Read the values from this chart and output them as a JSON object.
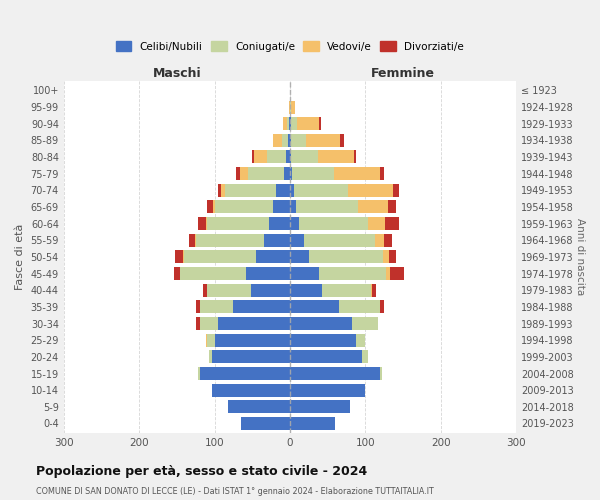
{
  "age_groups": [
    "0-4",
    "5-9",
    "10-14",
    "15-19",
    "20-24",
    "25-29",
    "30-34",
    "35-39",
    "40-44",
    "45-49",
    "50-54",
    "55-59",
    "60-64",
    "65-69",
    "70-74",
    "75-79",
    "80-84",
    "85-89",
    "90-94",
    "95-99",
    "100+"
  ],
  "birth_years": [
    "2019-2023",
    "2014-2018",
    "2009-2013",
    "2004-2008",
    "1999-2003",
    "1994-1998",
    "1989-1993",
    "1984-1988",
    "1979-1983",
    "1974-1978",
    "1969-1973",
    "1964-1968",
    "1959-1963",
    "1954-1958",
    "1949-1953",
    "1944-1948",
    "1939-1943",
    "1934-1938",
    "1929-1933",
    "1924-1928",
    "≤ 1923"
  ],
  "colors": {
    "celibi": "#4472c4",
    "coniugati": "#c5d5a0",
    "vedovi": "#f5c06a",
    "divorziati": "#c0312b"
  },
  "maschi": {
    "celibi": [
      65,
      82,
      103,
      120,
      103,
      100,
      95,
      75,
      52,
      58,
      45,
      35,
      28,
      22,
      18,
      8,
      5,
      2,
      1,
      0,
      0
    ],
    "coniugati": [
      0,
      0,
      0,
      2,
      5,
      10,
      25,
      45,
      58,
      88,
      95,
      90,
      82,
      78,
      68,
      48,
      25,
      8,
      3,
      0,
      0
    ],
    "vedovi": [
      0,
      0,
      0,
      0,
      0,
      2,
      0,
      0,
      0,
      0,
      2,
      1,
      2,
      2,
      5,
      10,
      18,
      12,
      5,
      1,
      0
    ],
    "divorziati": [
      0,
      0,
      0,
      0,
      0,
      0,
      5,
      5,
      5,
      8,
      10,
      8,
      10,
      8,
      5,
      5,
      2,
      0,
      0,
      0,
      0
    ]
  },
  "femmine": {
    "celibi": [
      60,
      80,
      100,
      120,
      95,
      88,
      82,
      65,
      42,
      38,
      25,
      18,
      12,
      8,
      5,
      3,
      2,
      1,
      1,
      0,
      0
    ],
    "coniugati": [
      0,
      0,
      0,
      2,
      8,
      12,
      35,
      55,
      65,
      90,
      98,
      95,
      92,
      82,
      72,
      55,
      35,
      20,
      8,
      2,
      0
    ],
    "vedovi": [
      0,
      0,
      0,
      0,
      0,
      0,
      0,
      0,
      2,
      5,
      8,
      12,
      22,
      40,
      60,
      62,
      48,
      45,
      30,
      5,
      0
    ],
    "divorziati": [
      0,
      0,
      0,
      0,
      0,
      0,
      0,
      5,
      5,
      18,
      10,
      10,
      18,
      10,
      8,
      5,
      2,
      5,
      2,
      0,
      0
    ]
  },
  "title": "Popolazione per età, sesso e stato civile - 2024",
  "subtitle": "COMUNE DI SAN DONATO DI LECCE (LE) - Dati ISTAT 1° gennaio 2024 - Elaborazione TUTTAITALIA.IT",
  "xlabel_maschi": "Maschi",
  "xlabel_femmine": "Femmine",
  "ylabel": "Fasce di età",
  "ylabel_right": "Anni di nascita",
  "xlim": 300,
  "legend_labels": [
    "Celibi/Nubili",
    "Coniugati/e",
    "Vedovi/e",
    "Divorziati/e"
  ],
  "bg_color": "#f0f0f0",
  "plot_bg": "#ffffff"
}
